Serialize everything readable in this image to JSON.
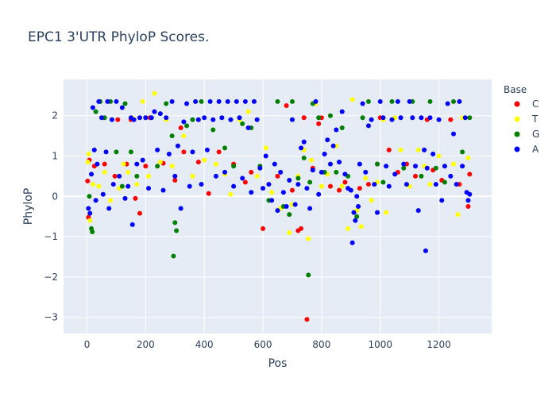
{
  "chart_data": {
    "type": "scatter",
    "title": "EPC1 3'UTR PhyloP Scores.",
    "xlabel": "Pos",
    "ylabel": "PhyloP",
    "xlim": [
      -80,
      1380
    ],
    "ylim": [
      -3.4,
      2.9
    ],
    "x_ticks": [
      0,
      200,
      400,
      600,
      800,
      1000,
      1200
    ],
    "y_ticks": [
      -3,
      -2,
      -1,
      0,
      1,
      2
    ],
    "grid": true,
    "legend_title": "Base",
    "legend_position": "top-right",
    "series": [
      {
        "name": "C",
        "color": "#ff0000",
        "points": [
          [
            2,
            0.38
          ],
          [
            5,
            -0.52
          ],
          [
            8,
            0.9
          ],
          [
            25,
            0.75
          ],
          [
            60,
            0.8
          ],
          [
            95,
            0.5
          ],
          [
            105,
            1.9
          ],
          [
            135,
            0.8
          ],
          [
            150,
            1.9
          ],
          [
            165,
            -0.05
          ],
          [
            180,
            -0.42
          ],
          [
            200,
            0.75
          ],
          [
            215,
            1.95
          ],
          [
            260,
            0.82
          ],
          [
            300,
            0.4
          ],
          [
            320,
            1.7
          ],
          [
            330,
            1.1
          ],
          [
            380,
            0.85
          ],
          [
            415,
            0.07
          ],
          [
            450,
            1.1
          ],
          [
            500,
            0.8
          ],
          [
            540,
            0.35
          ],
          [
            560,
            0.6
          ],
          [
            600,
            -0.8
          ],
          [
            650,
            0.5
          ],
          [
            680,
            2.25
          ],
          [
            700,
            0.15
          ],
          [
            720,
            -0.85
          ],
          [
            730,
            -0.8
          ],
          [
            740,
            1.95
          ],
          [
            750,
            -3.05
          ],
          [
            770,
            0.7
          ],
          [
            790,
            1.8
          ],
          [
            800,
            1.95
          ],
          [
            830,
            0.25
          ],
          [
            860,
            0.15
          ],
          [
            880,
            0.35
          ],
          [
            930,
            0.2
          ],
          [
            960,
            0.3
          ],
          [
            990,
            0.8
          ],
          [
            1000,
            1.95
          ],
          [
            1030,
            1.15
          ],
          [
            1060,
            0.6
          ],
          [
            1090,
            0.8
          ],
          [
            1120,
            0.5
          ],
          [
            1160,
            1.9
          ],
          [
            1180,
            0.65
          ],
          [
            1210,
            0.4
          ],
          [
            1240,
            1.9
          ],
          [
            1270,
            0.3
          ],
          [
            1300,
            -0.25
          ],
          [
            1305,
            0.55
          ]
        ]
      },
      {
        "name": "T",
        "color": "#ffff00",
        "points": [
          [
            3,
            0.85
          ],
          [
            6,
            1.05
          ],
          [
            10,
            -0.6
          ],
          [
            20,
            0.3
          ],
          [
            40,
            0.25
          ],
          [
            60,
            0.6
          ],
          [
            80,
            -0.1
          ],
          [
            110,
            0.2
          ],
          [
            125,
            0.8
          ],
          [
            140,
            0.6
          ],
          [
            155,
            1.95
          ],
          [
            170,
            0.3
          ],
          [
            190,
            2.35
          ],
          [
            210,
            0.5
          ],
          [
            230,
            2.55
          ],
          [
            250,
            0.85
          ],
          [
            270,
            1.9
          ],
          [
            290,
            0.75
          ],
          [
            330,
            1.5
          ],
          [
            360,
            0.5
          ],
          [
            400,
            0.9
          ],
          [
            440,
            0.8
          ],
          [
            470,
            0.55
          ],
          [
            490,
            0.05
          ],
          [
            520,
            1.9
          ],
          [
            550,
            2.1
          ],
          [
            580,
            0.5
          ],
          [
            610,
            1.2
          ],
          [
            630,
            0.1
          ],
          [
            660,
            -0.3
          ],
          [
            690,
            -0.9
          ],
          [
            700,
            -0.2
          ],
          [
            720,
            0.5
          ],
          [
            740,
            1.15
          ],
          [
            755,
            -1.05
          ],
          [
            765,
            0.9
          ],
          [
            780,
            2.3
          ],
          [
            800,
            0.25
          ],
          [
            820,
            0.55
          ],
          [
            850,
            1.25
          ],
          [
            870,
            0.25
          ],
          [
            890,
            -0.8
          ],
          [
            905,
            2.4
          ],
          [
            920,
            -0.35
          ],
          [
            935,
            -0.75
          ],
          [
            950,
            0.45
          ],
          [
            970,
            -0.1
          ],
          [
            990,
            0.35
          ],
          [
            1010,
            1.9
          ],
          [
            1020,
            -0.4
          ],
          [
            1050,
            1.95
          ],
          [
            1070,
            1.15
          ],
          [
            1100,
            0.25
          ],
          [
            1130,
            1.15
          ],
          [
            1150,
            0.75
          ],
          [
            1170,
            0.3
          ],
          [
            1200,
            1.0
          ],
          [
            1230,
            2.3
          ],
          [
            1250,
            0.8
          ],
          [
            1265,
            -0.45
          ],
          [
            1280,
            1.95
          ],
          [
            1300,
            0.95
          ]
        ]
      },
      {
        "name": "G",
        "color": "#008000",
        "points": [
          [
            8,
            0.0
          ],
          [
            15,
            -0.8
          ],
          [
            18,
            -0.88
          ],
          [
            30,
            2.1
          ],
          [
            45,
            2.35
          ],
          [
            60,
            1.95
          ],
          [
            80,
            2.35
          ],
          [
            100,
            1.1
          ],
          [
            120,
            0.25
          ],
          [
            130,
            2.3
          ],
          [
            150,
            1.1
          ],
          [
            170,
            0.5
          ],
          [
            200,
            1.95
          ],
          [
            240,
            0.75
          ],
          [
            270,
            2.3
          ],
          [
            290,
            1.5
          ],
          [
            295,
            -1.48
          ],
          [
            300,
            -0.65
          ],
          [
            305,
            -0.85
          ],
          [
            340,
            1.75
          ],
          [
            360,
            1.9
          ],
          [
            390,
            2.35
          ],
          [
            430,
            1.65
          ],
          [
            470,
            1.2
          ],
          [
            500,
            0.75
          ],
          [
            530,
            1.8
          ],
          [
            560,
            1.7
          ],
          [
            590,
            0.75
          ],
          [
            620,
            -0.1
          ],
          [
            650,
            2.35
          ],
          [
            670,
            -0.25
          ],
          [
            690,
            -0.45
          ],
          [
            700,
            2.35
          ],
          [
            720,
            0.45
          ],
          [
            740,
            0.95
          ],
          [
            755,
            -1.95
          ],
          [
            760,
            0.35
          ],
          [
            770,
            2.3
          ],
          [
            790,
            1.95
          ],
          [
            810,
            0.6
          ],
          [
            830,
            2.0
          ],
          [
            850,
            0.6
          ],
          [
            870,
            1.7
          ],
          [
            890,
            0.5
          ],
          [
            920,
            -0.5
          ],
          [
            940,
            1.95
          ],
          [
            960,
            2.35
          ],
          [
            990,
            0.8
          ],
          [
            1010,
            0.35
          ],
          [
            1040,
            2.35
          ],
          [
            1080,
            0.7
          ],
          [
            1110,
            2.35
          ],
          [
            1140,
            0.5
          ],
          [
            1170,
            2.35
          ],
          [
            1190,
            0.7
          ],
          [
            1220,
            0.35
          ],
          [
            1250,
            2.35
          ],
          [
            1280,
            1.1
          ],
          [
            1305,
            1.95
          ]
        ]
      },
      {
        "name": "A",
        "color": "#0000ff",
        "points": [
          [
            5,
            -0.3
          ],
          [
            10,
            -0.42
          ],
          [
            15,
            0.55
          ],
          [
            20,
            2.2
          ],
          [
            25,
            1.15
          ],
          [
            30,
            -0.1
          ],
          [
            35,
            0.8
          ],
          [
            40,
            2.35
          ],
          [
            50,
            1.95
          ],
          [
            55,
            0.05
          ],
          [
            65,
            1.1
          ],
          [
            70,
            2.35
          ],
          [
            75,
            -0.3
          ],
          [
            85,
            1.9
          ],
          [
            90,
            0.3
          ],
          [
            100,
            2.35
          ],
          [
            110,
            0.5
          ],
          [
            120,
            2.2
          ],
          [
            130,
            -0.05
          ],
          [
            140,
            0.25
          ],
          [
            150,
            1.95
          ],
          [
            155,
            -0.7
          ],
          [
            160,
            1.9
          ],
          [
            170,
            0.8
          ],
          [
            180,
            1.95
          ],
          [
            190,
            0.9
          ],
          [
            200,
            1.95
          ],
          [
            210,
            0.2
          ],
          [
            220,
            1.95
          ],
          [
            230,
            2.1
          ],
          [
            240,
            1.15
          ],
          [
            250,
            2.05
          ],
          [
            260,
            0.15
          ],
          [
            270,
            1.95
          ],
          [
            280,
            1.05
          ],
          [
            290,
            2.35
          ],
          [
            300,
            0.5
          ],
          [
            310,
            1.25
          ],
          [
            320,
            -0.3
          ],
          [
            330,
            1.85
          ],
          [
            340,
            2.3
          ],
          [
            350,
            0.25
          ],
          [
            360,
            1.1
          ],
          [
            370,
            2.35
          ],
          [
            380,
            1.9
          ],
          [
            390,
            0.3
          ],
          [
            400,
            1.95
          ],
          [
            410,
            1.15
          ],
          [
            420,
            2.35
          ],
          [
            430,
            1.9
          ],
          [
            440,
            0.5
          ],
          [
            450,
            2.35
          ],
          [
            460,
            1.95
          ],
          [
            470,
            0.6
          ],
          [
            480,
            2.35
          ],
          [
            490,
            1.9
          ],
          [
            500,
            0.25
          ],
          [
            510,
            2.35
          ],
          [
            520,
            1.95
          ],
          [
            530,
            0.45
          ],
          [
            540,
            2.35
          ],
          [
            550,
            1.7
          ],
          [
            560,
            0.1
          ],
          [
            570,
            2.35
          ],
          [
            580,
            1.9
          ],
          [
            590,
            0.7
          ],
          [
            600,
            0.2
          ],
          [
            610,
            1.0
          ],
          [
            620,
            0.3
          ],
          [
            630,
            -0.1
          ],
          [
            640,
            0.8
          ],
          [
            650,
            -0.35
          ],
          [
            660,
            0.6
          ],
          [
            670,
            0.1
          ],
          [
            680,
            -0.25
          ],
          [
            690,
            0.4
          ],
          [
            700,
            1.9
          ],
          [
            710,
            -0.2
          ],
          [
            720,
            0.3
          ],
          [
            730,
            1.2
          ],
          [
            740,
            1.35
          ],
          [
            750,
            0.2
          ],
          [
            760,
            -0.3
          ],
          [
            770,
            0.65
          ],
          [
            780,
            2.35
          ],
          [
            790,
            0.05
          ],
          [
            800,
            0.6
          ],
          [
            810,
            1.05
          ],
          [
            820,
            1.4
          ],
          [
            830,
            0.8
          ],
          [
            840,
            1.25
          ],
          [
            850,
            1.65
          ],
          [
            860,
            0.85
          ],
          [
            870,
            2.1
          ],
          [
            880,
            0.55
          ],
          [
            890,
            0.2
          ],
          [
            900,
            0.15
          ],
          [
            905,
            -1.15
          ],
          [
            910,
            -0.4
          ],
          [
            915,
            -0.6
          ],
          [
            920,
            0.0
          ],
          [
            925,
            -0.25
          ],
          [
            930,
            0.8
          ],
          [
            940,
            2.3
          ],
          [
            950,
            0.6
          ],
          [
            960,
            1.75
          ],
          [
            970,
            1.9
          ],
          [
            980,
            0.3
          ],
          [
            990,
            -0.4
          ],
          [
            1000,
            2.35
          ],
          [
            1010,
            1.95
          ],
          [
            1020,
            0.75
          ],
          [
            1030,
            0.25
          ],
          [
            1040,
            1.9
          ],
          [
            1050,
            0.55
          ],
          [
            1060,
            2.35
          ],
          [
            1070,
            1.95
          ],
          [
            1080,
            0.8
          ],
          [
            1090,
            0.3
          ],
          [
            1100,
            2.35
          ],
          [
            1110,
            1.95
          ],
          [
            1120,
            0.75
          ],
          [
            1130,
            -0.35
          ],
          [
            1140,
            1.95
          ],
          [
            1150,
            1.15
          ],
          [
            1155,
            -1.35
          ],
          [
            1160,
            0.7
          ],
          [
            1170,
            1.95
          ],
          [
            1180,
            1.05
          ],
          [
            1190,
            0.3
          ],
          [
            1200,
            1.9
          ],
          [
            1210,
            -0.1
          ],
          [
            1220,
            0.75
          ],
          [
            1230,
            2.3
          ],
          [
            1240,
            0.5
          ],
          [
            1250,
            1.55
          ],
          [
            1260,
            0.3
          ],
          [
            1270,
            2.35
          ],
          [
            1280,
            0.75
          ],
          [
            1290,
            1.95
          ],
          [
            1295,
            0.1
          ],
          [
            1300,
            -0.1
          ],
          [
            1305,
            0.05
          ]
        ]
      }
    ]
  }
}
